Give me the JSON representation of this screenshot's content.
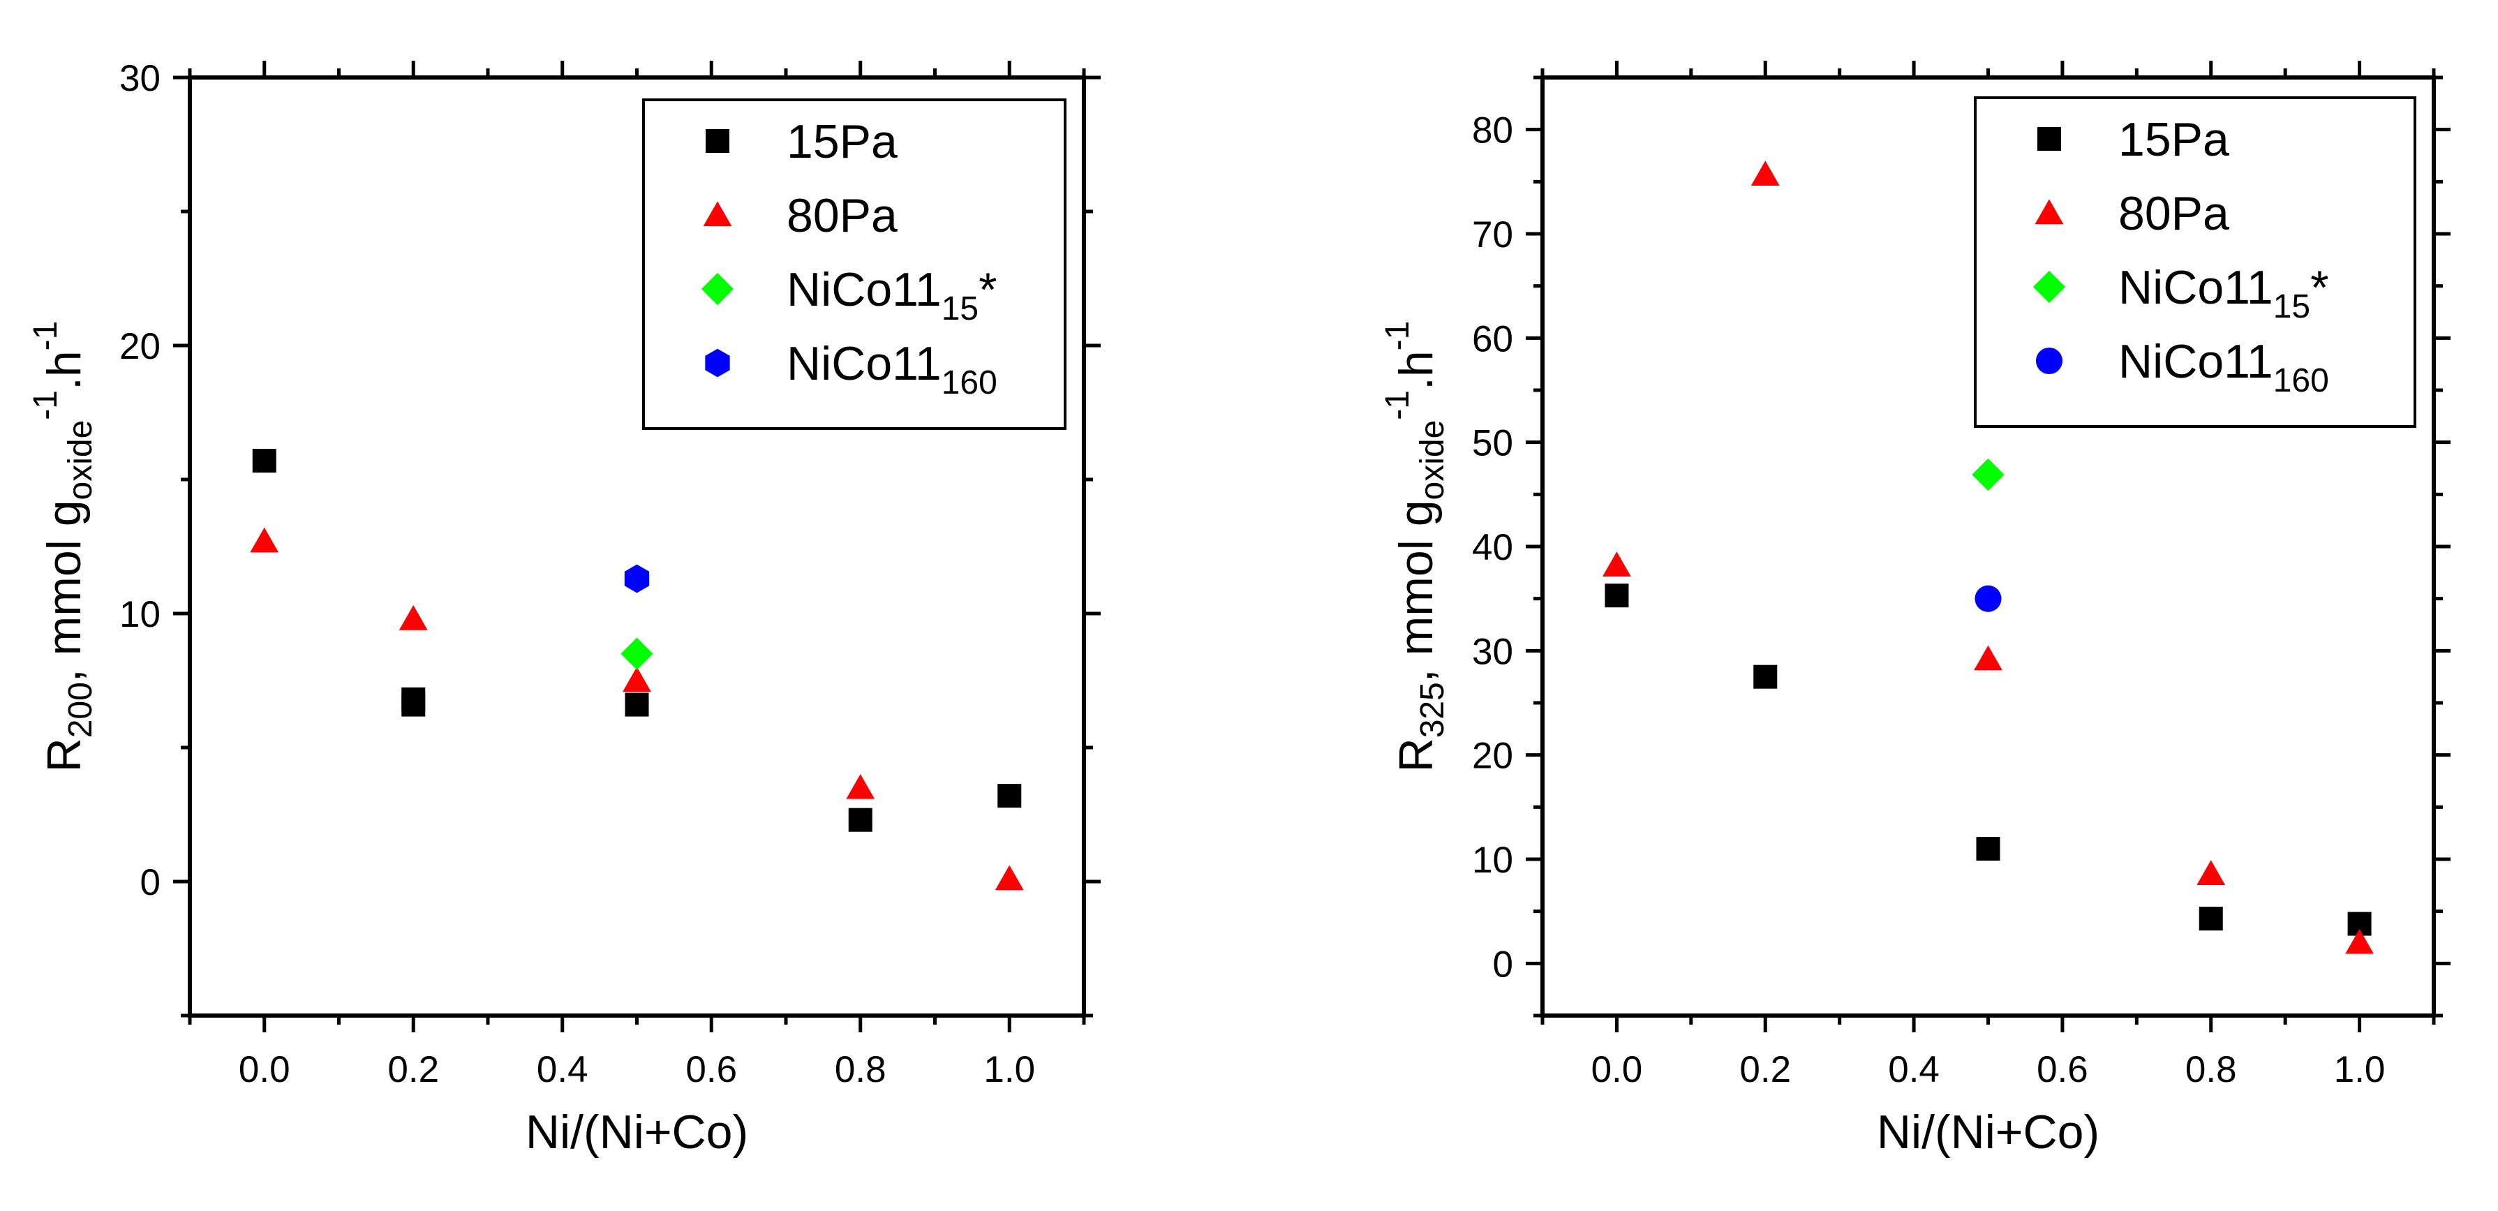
{
  "chart_data": [
    {
      "type": "scatter",
      "id": "left",
      "xlabel": "Ni/(Ni+Co)",
      "ylabel": {
        "main": "R",
        "sub": "200",
        "rest": ", mmol g",
        "sub2": "oxide",
        "sup1": "-1",
        "mid": ".h",
        "sup2": "-1"
      },
      "xlim": [
        -0.1,
        1.1
      ],
      "ylim": [
        -5,
        30
      ],
      "xticks": [
        0.0,
        0.2,
        0.4,
        0.6,
        0.8,
        1.0
      ],
      "xtick_labels": [
        "0.0",
        "0.2",
        "0.4",
        "0.6",
        "0.8",
        "1.0"
      ],
      "yticks": [
        0,
        10,
        20,
        30
      ],
      "ytick_labels": [
        "0",
        "10",
        "20",
        "30"
      ],
      "legend_position": "top-right",
      "series": [
        {
          "name": "15Pa",
          "label": "15Pa",
          "marker": "square",
          "color": "#000000",
          "points": [
            [
              0.0,
              15.7
            ],
            [
              0.2,
              6.6
            ],
            [
              0.2,
              6.8
            ],
            [
              0.5,
              6.6
            ],
            [
              0.8,
              2.3
            ],
            [
              1.0,
              3.2
            ]
          ]
        },
        {
          "name": "80Pa",
          "label": "80Pa",
          "marker": "triangle",
          "color": "#ff0000",
          "points": [
            [
              0.0,
              12.7
            ],
            [
              0.2,
              9.8
            ],
            [
              0.5,
              7.5
            ],
            [
              0.8,
              3.5
            ],
            [
              1.0,
              0.1
            ]
          ]
        },
        {
          "name": "NiCo11_15*",
          "label": "NiCo11",
          "sub": "15",
          "suffix": "*",
          "marker": "diamond",
          "color": "#00ff00",
          "points": [
            [
              0.5,
              8.5
            ]
          ]
        },
        {
          "name": "NiCo11_160",
          "label": "NiCo11",
          "sub": "160",
          "marker": "hexagon",
          "color": "#0000ff",
          "points": [
            [
              0.5,
              11.3
            ]
          ]
        }
      ]
    },
    {
      "type": "scatter",
      "id": "right",
      "xlabel": "Ni/(Ni+Co)",
      "ylabel": {
        "main": "R",
        "sub": "325",
        "rest": ", mmol g",
        "sub2": "oxide",
        "sup1": "-1",
        "mid": ".h",
        "sup2": "-1"
      },
      "xlim": [
        -0.1,
        1.1
      ],
      "ylim": [
        -5,
        85
      ],
      "xticks": [
        0.0,
        0.2,
        0.4,
        0.6,
        0.8,
        1.0
      ],
      "xtick_labels": [
        "0.0",
        "0.2",
        "0.4",
        "0.6",
        "0.8",
        "1.0"
      ],
      "yticks": [
        0,
        10,
        20,
        30,
        40,
        50,
        60,
        70,
        80
      ],
      "ytick_labels": [
        "0",
        "10",
        "20",
        "30",
        "40",
        "50",
        "60",
        "70",
        "80"
      ],
      "legend_position": "top-right",
      "series": [
        {
          "name": "15Pa",
          "label": "15Pa",
          "marker": "square",
          "color": "#000000",
          "points": [
            [
              0.0,
              35.3
            ],
            [
              0.2,
              27.5
            ],
            [
              0.5,
              11.0
            ],
            [
              0.8,
              4.3
            ],
            [
              1.0,
              3.8
            ]
          ]
        },
        {
          "name": "80Pa",
          "label": "80Pa",
          "marker": "triangle",
          "color": "#ff0000",
          "points": [
            [
              0.0,
              38.2
            ],
            [
              0.2,
              75.7
            ],
            [
              0.5,
              29.2
            ],
            [
              0.8,
              8.6
            ],
            [
              1.0,
              2.0
            ]
          ]
        },
        {
          "name": "NiCo11_15*",
          "label": "NiCo11",
          "sub": "15",
          "suffix": "*",
          "marker": "diamond",
          "color": "#00ff00",
          "points": [
            [
              0.5,
              46.9
            ]
          ]
        },
        {
          "name": "NiCo11_160",
          "label": "NiCo11",
          "sub": "160",
          "marker": "circle",
          "color": "#0000ff",
          "points": [
            [
              0.5,
              35.0
            ]
          ]
        }
      ]
    }
  ]
}
